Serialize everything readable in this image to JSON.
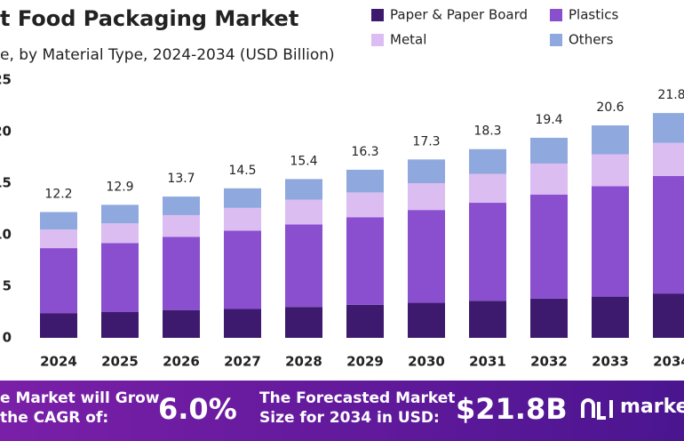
{
  "chart_data": {
    "type": "stacked_bar",
    "title": "t Food Packaging Market",
    "subtitle": "e, by Material Type, 2024-2034 (USD Billion)",
    "categories": [
      "2024",
      "2025",
      "2026",
      "2027",
      "2028",
      "2029",
      "2030",
      "2031",
      "2032",
      "2033",
      "2034"
    ],
    "series": [
      {
        "name": "Paper & Paper Board",
        "color": "#3d1a6e",
        "values": [
          2.4,
          2.5,
          2.7,
          2.8,
          3.0,
          3.2,
          3.4,
          3.6,
          3.8,
          4.0,
          4.3
        ]
      },
      {
        "name": "Plastics",
        "color": "#8a4fcf",
        "values": [
          6.3,
          6.7,
          7.1,
          7.6,
          8.0,
          8.5,
          9.0,
          9.5,
          10.1,
          10.7,
          11.4
        ]
      },
      {
        "name": "Metal",
        "color": "#dcbdf2",
        "values": [
          1.8,
          1.9,
          2.1,
          2.2,
          2.4,
          2.4,
          2.6,
          2.8,
          3.0,
          3.1,
          3.2
        ]
      },
      {
        "name": "Others",
        "color": "#8fa9df",
        "values": [
          1.7,
          1.8,
          1.8,
          1.9,
          2.0,
          2.2,
          2.3,
          2.4,
          2.5,
          2.8,
          2.9
        ]
      }
    ],
    "totals": [
      12.2,
      12.9,
      13.7,
      14.5,
      15.4,
      16.3,
      17.3,
      18.3,
      19.4,
      20.6,
      21.8
    ],
    "ylim": [
      0,
      25
    ],
    "yticks": [
      0,
      5,
      10,
      15,
      20,
      25
    ],
    "grid": false
  },
  "banner": {
    "cagr_text_1": "e Market will Grow",
    "cagr_text_2": "the CAGR of:",
    "cagr": "6.0%",
    "forecast_text_1": "The Forecasted Market",
    "forecast_text_2": "Size for 2034 in USD:",
    "forecast": "$21.8B",
    "logo": "market"
  }
}
